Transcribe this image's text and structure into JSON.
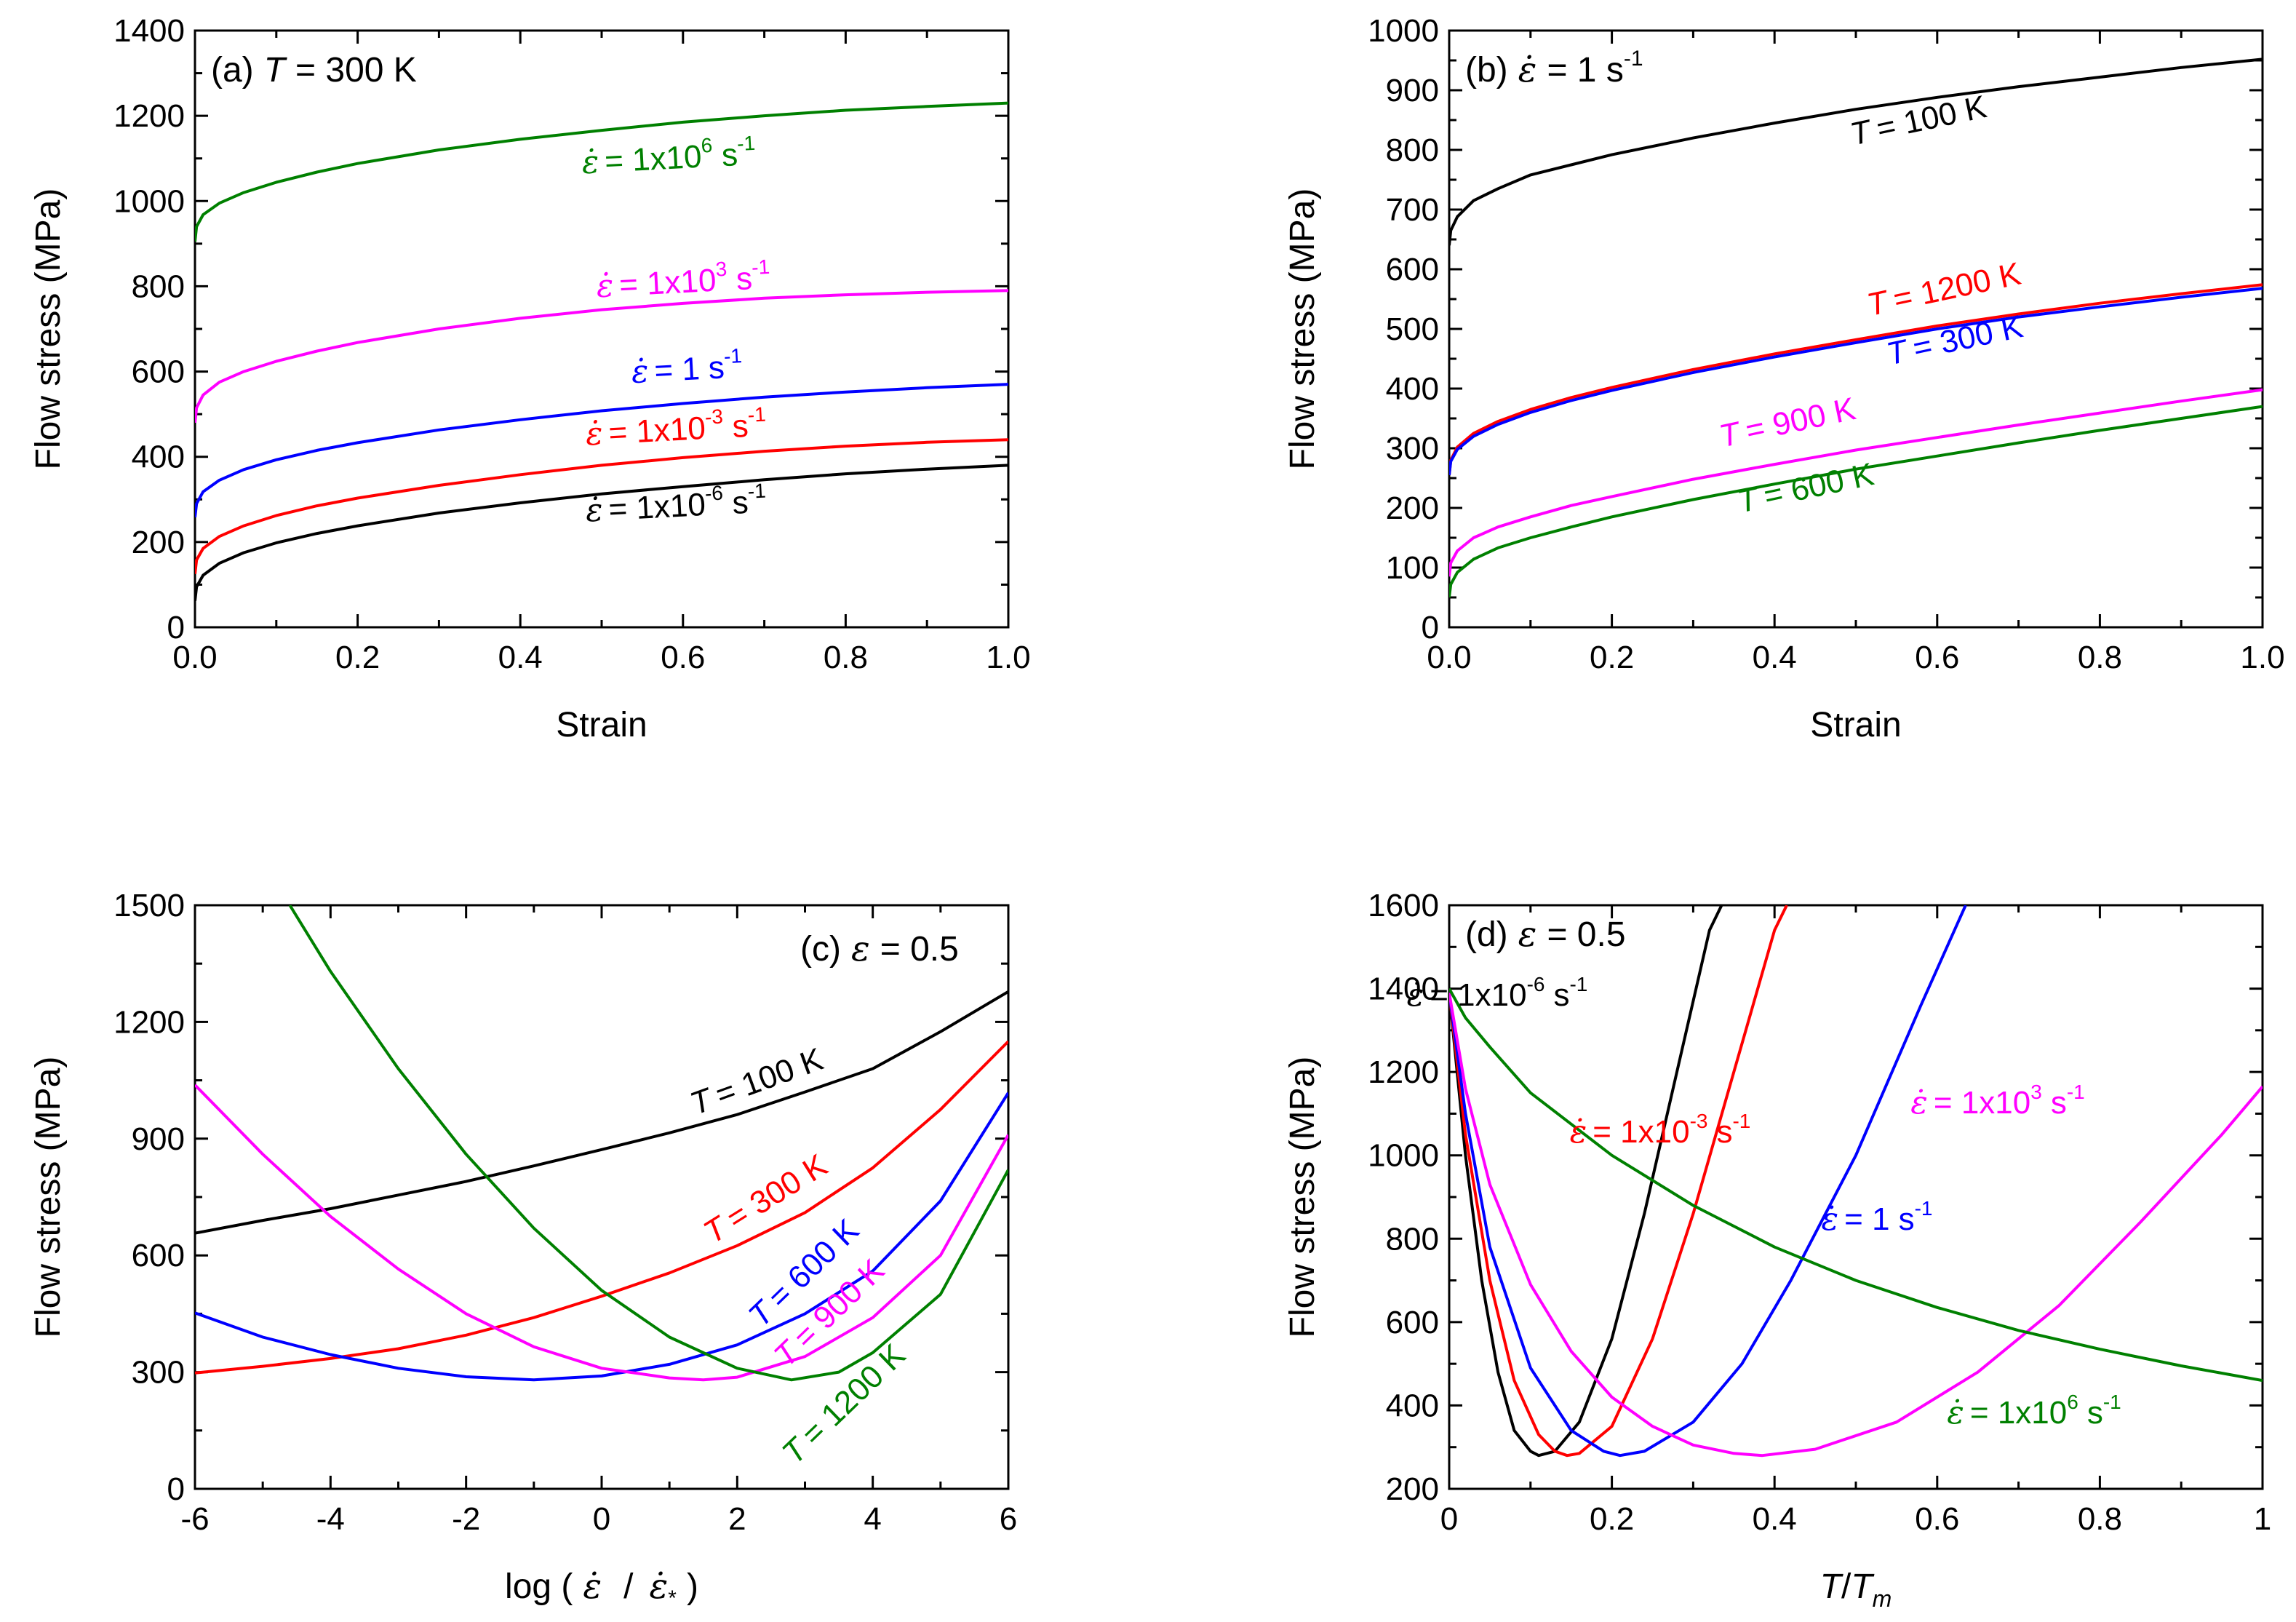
{
  "figure": {
    "rate_symbol": "ε̇",
    "strain_symbol": "ε",
    "exp_minus1": "-1"
  },
  "chart_data": [
    {
      "panel": "a",
      "type": "line",
      "title_prefix": "(a)",
      "title_var": "T",
      "title_rest": "= 300 K",
      "xlabel": "Strain",
      "ylabel": "Flow stress (MPa)",
      "xlim": [
        0,
        1.0
      ],
      "ylim": [
        0,
        1400
      ],
      "xticks": [
        "0.0",
        "0.2",
        "0.4",
        "0.6",
        "0.8",
        "1.0"
      ],
      "yticks": [
        "0",
        "200",
        "400",
        "600",
        "800",
        "1000",
        "1200",
        "1400"
      ],
      "grid": false,
      "series": [
        {
          "name": "1x10⁶ s⁻¹",
          "color": "#008000",
          "x": [
            0,
            0.002,
            0.01,
            0.03,
            0.06,
            0.1,
            0.15,
            0.2,
            0.3,
            0.4,
            0.5,
            0.6,
            0.7,
            0.8,
            0.9,
            1.0
          ],
          "y": [
            905,
            940,
            968,
            995,
            1020,
            1044,
            1068,
            1088,
            1120,
            1145,
            1166,
            1185,
            1200,
            1213,
            1222,
            1230
          ]
        },
        {
          "name": "1x10³ s⁻¹",
          "color": "#ff00ff",
          "x": [
            0,
            0.002,
            0.01,
            0.03,
            0.06,
            0.1,
            0.15,
            0.2,
            0.3,
            0.4,
            0.5,
            0.6,
            0.7,
            0.8,
            0.9,
            1.0
          ],
          "y": [
            480,
            515,
            545,
            575,
            600,
            624,
            648,
            668,
            700,
            725,
            745,
            760,
            772,
            780,
            786,
            790
          ]
        },
        {
          "name": "1 s⁻¹",
          "color": "#0000ff",
          "x": [
            0,
            0.002,
            0.01,
            0.03,
            0.06,
            0.1,
            0.15,
            0.2,
            0.3,
            0.4,
            0.5,
            0.6,
            0.7,
            0.8,
            0.9,
            1.0
          ],
          "y": [
            258,
            290,
            318,
            345,
            370,
            393,
            415,
            433,
            463,
            487,
            508,
            525,
            540,
            552,
            562,
            570
          ]
        },
        {
          "name": "1x10⁻³ s⁻¹",
          "color": "#ff0000",
          "x": [
            0,
            0.002,
            0.01,
            0.03,
            0.06,
            0.1,
            0.15,
            0.2,
            0.3,
            0.4,
            0.5,
            0.6,
            0.7,
            0.8,
            0.9,
            1.0
          ],
          "y": [
            125,
            158,
            185,
            213,
            238,
            262,
            285,
            303,
            333,
            358,
            380,
            398,
            413,
            425,
            434,
            440
          ]
        },
        {
          "name": "1x10⁻⁶ s⁻¹",
          "color": "#000000",
          "x": [
            0,
            0.002,
            0.01,
            0.03,
            0.06,
            0.1,
            0.15,
            0.2,
            0.3,
            0.4,
            0.5,
            0.6,
            0.7,
            0.8,
            0.9,
            1.0
          ],
          "y": [
            62,
            95,
            122,
            150,
            175,
            198,
            220,
            238,
            268,
            292,
            313,
            330,
            346,
            360,
            371,
            380
          ]
        }
      ],
      "annotations": [
        {
          "kind": "rate",
          "mantissa": "1x10",
          "exp": "6",
          "unit": "s",
          "color": "#008000"
        },
        {
          "kind": "rate",
          "mantissa": "1x10",
          "exp": "3",
          "unit": "s",
          "color": "#ff00ff"
        },
        {
          "kind": "rate",
          "mantissa": "1",
          "exp": "",
          "unit": "s",
          "color": "#0000ff"
        },
        {
          "kind": "rate",
          "mantissa": "1x10",
          "exp": "-3",
          "unit": "s",
          "color": "#ff0000"
        },
        {
          "kind": "rate",
          "mantissa": "1x10",
          "exp": "-6",
          "unit": "s",
          "color": "#000000"
        }
      ]
    },
    {
      "panel": "b",
      "type": "line",
      "title_prefix": "(b)",
      "title_rest": "= 1 s",
      "xlabel": "Strain",
      "ylabel": "Flow stress (MPa)",
      "xlim": [
        0,
        1.0
      ],
      "ylim": [
        0,
        1000
      ],
      "xticks": [
        "0.0",
        "0.2",
        "0.4",
        "0.6",
        "0.8",
        "1.0"
      ],
      "yticks": [
        "0",
        "100",
        "200",
        "300",
        "400",
        "500",
        "600",
        "700",
        "800",
        "900",
        "1000"
      ],
      "grid": false,
      "series": [
        {
          "name": "T = 100 K",
          "color": "#000000",
          "x": [
            0,
            0.002,
            0.01,
            0.03,
            0.06,
            0.1,
            0.15,
            0.2,
            0.3,
            0.4,
            0.5,
            0.6,
            0.7,
            0.8,
            0.9,
            1.0
          ],
          "y": [
            640,
            665,
            688,
            715,
            735,
            758,
            775,
            792,
            820,
            845,
            868,
            888,
            906,
            922,
            938,
            952
          ]
        },
        {
          "name": "T = 1200 K",
          "color": "#ff0000",
          "x": [
            0,
            0.002,
            0.01,
            0.03,
            0.06,
            0.1,
            0.15,
            0.2,
            0.3,
            0.4,
            0.5,
            0.6,
            0.7,
            0.8,
            0.9,
            1.0
          ],
          "y": [
            255,
            280,
            302,
            325,
            345,
            365,
            385,
            402,
            432,
            458,
            482,
            505,
            525,
            543,
            559,
            574
          ]
        },
        {
          "name": "T = 300 K",
          "color": "#0000ff",
          "x": [
            0,
            0.002,
            0.01,
            0.03,
            0.06,
            0.1,
            0.15,
            0.2,
            0.3,
            0.4,
            0.5,
            0.6,
            0.7,
            0.8,
            0.9,
            1.0
          ],
          "y": [
            255,
            278,
            298,
            320,
            340,
            360,
            380,
            397,
            427,
            453,
            477,
            500,
            520,
            537,
            553,
            568
          ]
        },
        {
          "name": "T = 900 K",
          "color": "#ff00ff",
          "x": [
            0,
            0.002,
            0.01,
            0.03,
            0.06,
            0.1,
            0.15,
            0.2,
            0.3,
            0.4,
            0.5,
            0.6,
            0.7,
            0.8,
            0.9,
            1.0
          ],
          "y": [
            85,
            108,
            128,
            150,
            168,
            185,
            204,
            219,
            248,
            273,
            297,
            318,
            339,
            359,
            379,
            398
          ]
        },
        {
          "name": "T = 600 K",
          "color": "#008000",
          "x": [
            0,
            0.002,
            0.01,
            0.03,
            0.06,
            0.1,
            0.15,
            0.2,
            0.3,
            0.4,
            0.5,
            0.6,
            0.7,
            0.8,
            0.9,
            1.0
          ],
          "y": [
            50,
            72,
            92,
            114,
            133,
            150,
            168,
            185,
            214,
            240,
            265,
            287,
            309,
            330,
            350,
            370
          ]
        }
      ],
      "annotations": [
        {
          "kind": "temp",
          "var": "T",
          "text": "= 100 K",
          "color": "#000000"
        },
        {
          "kind": "temp",
          "var": "T",
          "text": "= 1200 K",
          "color": "#ff0000"
        },
        {
          "kind": "temp",
          "var": "T",
          "text": "= 300 K",
          "color": "#0000ff"
        },
        {
          "kind": "temp",
          "var": "T",
          "text": "= 900 K",
          "color": "#ff00ff"
        },
        {
          "kind": "temp",
          "var": "T",
          "text": "= 600 K",
          "color": "#008000"
        }
      ]
    },
    {
      "panel": "c",
      "type": "line",
      "title_prefix": "(c)",
      "title_rest": "= 0.5",
      "xlabel_prefix": "log (",
      "xlabel_sub": "*",
      "xlabel_suffix": ")",
      "ylabel": "Flow stress (MPa)",
      "xlim": [
        -6,
        6
      ],
      "ylim": [
        0,
        1500
      ],
      "xticks": [
        "-6",
        "-4",
        "-2",
        "0",
        "2",
        "4",
        "6"
      ],
      "yticks": [
        "0",
        "300",
        "600",
        "900",
        "1200",
        "1500"
      ],
      "grid": false,
      "series": [
        {
          "name": "T = 100 K",
          "color": "#000000",
          "x": [
            -6,
            -5,
            -4,
            -3,
            -2,
            -1,
            0,
            1,
            2,
            3,
            4,
            5,
            6
          ],
          "y": [
            657,
            690,
            720,
            755,
            790,
            830,
            872,
            915,
            962,
            1020,
            1080,
            1175,
            1278
          ]
        },
        {
          "name": "T = 300 K",
          "color": "#ff0000",
          "x": [
            -6,
            -5,
            -4,
            -3,
            -2,
            -1,
            0,
            1,
            2,
            3,
            4,
            5,
            6
          ],
          "y": [
            298,
            315,
            335,
            360,
            395,
            440,
            495,
            555,
            625,
            710,
            825,
            975,
            1150
          ]
        },
        {
          "name": "T = 600 K",
          "color": "#0000ff",
          "x": [
            -6,
            -5,
            -4,
            -3,
            -2,
            -1,
            0,
            1,
            2,
            3,
            4,
            5,
            6
          ],
          "y": [
            452,
            390,
            345,
            310,
            288,
            280,
            290,
            320,
            370,
            450,
            560,
            740,
            1018
          ]
        },
        {
          "name": "T = 900 K",
          "color": "#ff00ff",
          "x": [
            -6,
            -5,
            -4,
            -3,
            -2,
            -1,
            0,
            1,
            1.5,
            2,
            3,
            4,
            5,
            6
          ],
          "y": [
            1038,
            860,
            700,
            565,
            450,
            365,
            310,
            285,
            280,
            287,
            340,
            440,
            600,
            910
          ]
        },
        {
          "name": "T = 1200 K",
          "color": "#008000",
          "x": [
            -4.6,
            -4,
            -3,
            -2,
            -1,
            0,
            1,
            2,
            2.8,
            3.5,
            4,
            5,
            6
          ],
          "y": [
            1500,
            1330,
            1080,
            860,
            670,
            510,
            390,
            310,
            280,
            300,
            350,
            500,
            820
          ]
        }
      ],
      "annotations": [
        {
          "kind": "temp",
          "var": "T",
          "text": "= 100 K",
          "color": "#000000"
        },
        {
          "kind": "temp",
          "var": "T",
          "text": "= 300 K",
          "color": "#ff0000"
        },
        {
          "kind": "temp",
          "var": "T",
          "text": "= 600 K",
          "color": "#0000ff"
        },
        {
          "kind": "temp",
          "var": "T",
          "text": "= 900 K",
          "color": "#ff00ff"
        },
        {
          "kind": "temp",
          "var": "T",
          "text": "= 1200 K",
          "color": "#008000"
        }
      ]
    },
    {
      "panel": "d",
      "type": "line",
      "title_prefix": "(d)",
      "title_rest": "= 0.5",
      "xlabel_var": "T",
      "xlabel_sep": "/",
      "xlabel_var2": "T",
      "xlabel_sub": "m",
      "ylabel": "Flow stress (MPa)",
      "xlim": [
        0,
        1
      ],
      "ylim": [
        200,
        1600
      ],
      "xticks": [
        "0",
        "0.2",
        "0.4",
        "0.6",
        "0.8",
        "1"
      ],
      "yticks": [
        "200",
        "400",
        "600",
        "800",
        "1000",
        "1200",
        "1400",
        "1600"
      ],
      "grid": false,
      "series": [
        {
          "name": "1x10⁻⁶ s⁻¹",
          "color": "#000000",
          "x": [
            0,
            0.02,
            0.04,
            0.06,
            0.08,
            0.1,
            0.11,
            0.13,
            0.16,
            0.2,
            0.24,
            0.28,
            0.32,
            0.335
          ],
          "y": [
            1390,
            1000,
            700,
            480,
            340,
            290,
            280,
            290,
            360,
            560,
            860,
            1200,
            1540,
            1600
          ]
        },
        {
          "name": "1x10⁻³ s⁻¹",
          "color": "#ff0000",
          "x": [
            0,
            0.02,
            0.05,
            0.08,
            0.11,
            0.13,
            0.145,
            0.16,
            0.2,
            0.25,
            0.3,
            0.35,
            0.4,
            0.415
          ],
          "y": [
            1390,
            1050,
            700,
            460,
            330,
            290,
            280,
            285,
            350,
            560,
            860,
            1200,
            1540,
            1600
          ]
        },
        {
          "name": "1 s⁻¹",
          "color": "#0000ff",
          "x": [
            0,
            0.02,
            0.05,
            0.1,
            0.15,
            0.19,
            0.21,
            0.24,
            0.3,
            0.36,
            0.42,
            0.5,
            0.58,
            0.635
          ],
          "y": [
            1390,
            1100,
            780,
            490,
            340,
            290,
            280,
            290,
            360,
            500,
            700,
            1000,
            1360,
            1600
          ]
        },
        {
          "name": "1x10³ s⁻¹",
          "color": "#ff00ff",
          "x": [
            0,
            0.02,
            0.05,
            0.1,
            0.15,
            0.2,
            0.25,
            0.3,
            0.35,
            0.385,
            0.45,
            0.55,
            0.65,
            0.75,
            0.85,
            0.95,
            1.0
          ],
          "y": [
            1390,
            1160,
            930,
            690,
            530,
            420,
            350,
            305,
            285,
            280,
            295,
            360,
            480,
            640,
            840,
            1050,
            1165
          ]
        },
        {
          "name": "1x10⁶ s⁻¹",
          "color": "#008000",
          "x": [
            0,
            0.02,
            0.05,
            0.1,
            0.2,
            0.3,
            0.4,
            0.5,
            0.6,
            0.7,
            0.8,
            0.9,
            1.0
          ],
          "y": [
            1400,
            1330,
            1260,
            1150,
            1000,
            880,
            780,
            700,
            635,
            580,
            535,
            495,
            460
          ]
        }
      ],
      "annotations": [
        {
          "kind": "rate",
          "mantissa": "1x10",
          "exp": "-6",
          "unit": "s",
          "color": "#000000"
        },
        {
          "kind": "rate",
          "mantissa": "1x10",
          "exp": "-3",
          "unit": "s",
          "color": "#ff0000"
        },
        {
          "kind": "rate",
          "mantissa": "1",
          "exp": "",
          "unit": "s",
          "color": "#0000ff"
        },
        {
          "kind": "rate",
          "mantissa": "1x10",
          "exp": "3",
          "unit": "s",
          "color": "#ff00ff"
        },
        {
          "kind": "rate",
          "mantissa": "1x10",
          "exp": "6",
          "unit": "s",
          "color": "#008000"
        }
      ]
    }
  ]
}
